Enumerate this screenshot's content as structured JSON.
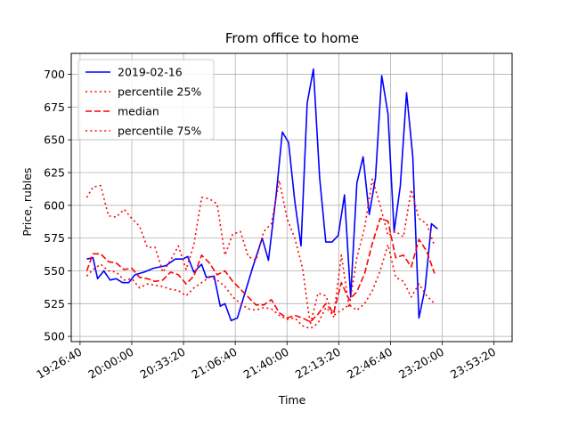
{
  "chart_data": {
    "type": "line",
    "title": "From office to home",
    "xlabel": "Time",
    "ylabel": "Price, rubles",
    "xlim": [
      "19:21:00",
      "24:05:00"
    ],
    "ylim": [
      496,
      716
    ],
    "grid": true,
    "legend_position": "top-left",
    "x_ticks": [
      "19:26:40",
      "20:00:00",
      "20:33:20",
      "21:06:40",
      "21:40:00",
      "22:13:20",
      "22:46:40",
      "23:20:00",
      "23:53:20"
    ],
    "y_ticks": [
      500,
      525,
      550,
      575,
      600,
      625,
      650,
      675,
      700
    ],
    "series": [
      {
        "name": "2019-02-16",
        "color": "#0000ff",
        "style": "solid",
        "points": [
          [
            "19:31:00",
            559
          ],
          [
            "19:35:00",
            560
          ],
          [
            "19:38:00",
            544
          ],
          [
            "19:42:00",
            550
          ],
          [
            "19:46:00",
            543
          ],
          [
            "19:50:00",
            544
          ],
          [
            "19:54:00",
            541
          ],
          [
            "19:58:00",
            541
          ],
          [
            "20:02:00",
            547
          ],
          [
            "20:08:00",
            549
          ],
          [
            "20:14:00",
            552
          ],
          [
            "20:22:00",
            554
          ],
          [
            "20:28:00",
            559
          ],
          [
            "20:33:00",
            559
          ],
          [
            "20:36:00",
            561
          ],
          [
            "20:40:00",
            549
          ],
          [
            "20:45:00",
            555
          ],
          [
            "20:48:00",
            545
          ],
          [
            "20:53:00",
            546
          ],
          [
            "20:57:00",
            523
          ],
          [
            "21:00:00",
            525
          ],
          [
            "21:04:00",
            512
          ],
          [
            "21:08:00",
            514
          ],
          [
            "21:18:00",
            553
          ],
          [
            "21:24:00",
            575
          ],
          [
            "21:28:00",
            558
          ],
          [
            "21:33:00",
            608
          ],
          [
            "21:37:00",
            656
          ],
          [
            "21:41:00",
            648
          ],
          [
            "21:45:00",
            603
          ],
          [
            "21:49:00",
            569
          ],
          [
            "21:53:00",
            678
          ],
          [
            "21:57:00",
            704
          ],
          [
            "22:01:00",
            621
          ],
          [
            "22:05:00",
            572
          ],
          [
            "22:09:00",
            572
          ],
          [
            "22:13:00",
            577
          ],
          [
            "22:17:00",
            608
          ],
          [
            "22:21:00",
            530
          ],
          [
            "22:25:00",
            617
          ],
          [
            "22:29:00",
            637
          ],
          [
            "22:33:00",
            593
          ],
          [
            "22:37:00",
            621
          ],
          [
            "22:41:00",
            699
          ],
          [
            "22:45:00",
            670
          ],
          [
            "22:49:00",
            580
          ],
          [
            "22:53:00",
            615
          ],
          [
            "22:57:00",
            686
          ],
          [
            "23:01:00",
            637
          ],
          [
            "23:05:00",
            514
          ],
          [
            "23:09:00",
            537
          ],
          [
            "23:13:00",
            586
          ],
          [
            "23:17:00",
            582
          ]
        ]
      },
      {
        "name": "percentile 25%",
        "color": "#ff0000",
        "style": "dotted",
        "points": [
          [
            "19:31:00",
            546
          ],
          [
            "19:35:00",
            551
          ],
          [
            "19:40:00",
            555
          ],
          [
            "19:45:00",
            550
          ],
          [
            "19:50:00",
            549
          ],
          [
            "19:55:00",
            543
          ],
          [
            "20:00:00",
            544
          ],
          [
            "20:05:00",
            537
          ],
          [
            "20:10:00",
            540
          ],
          [
            "20:15:00",
            539
          ],
          [
            "20:20:00",
            538
          ],
          [
            "20:25:00",
            536
          ],
          [
            "20:30:00",
            535
          ],
          [
            "20:35:00",
            531
          ],
          [
            "20:40:00",
            537
          ],
          [
            "20:45:00",
            541
          ],
          [
            "20:50:00",
            545
          ],
          [
            "20:55:00",
            543
          ],
          [
            "21:00:00",
            538
          ],
          [
            "21:05:00",
            530
          ],
          [
            "21:10:00",
            525
          ],
          [
            "21:15:00",
            521
          ],
          [
            "21:20:00",
            520
          ],
          [
            "21:25:00",
            522
          ],
          [
            "21:30:00",
            521
          ],
          [
            "21:35:00",
            516
          ],
          [
            "21:40:00",
            513
          ],
          [
            "21:45:00",
            514
          ],
          [
            "21:50:00",
            508
          ],
          [
            "21:55:00",
            506
          ],
          [
            "22:00:00",
            510
          ],
          [
            "22:05:00",
            522
          ],
          [
            "22:10:00",
            516
          ],
          [
            "22:15:00",
            520
          ],
          [
            "22:20:00",
            524
          ],
          [
            "22:25:00",
            520
          ],
          [
            "22:30:00",
            525
          ],
          [
            "22:35:00",
            535
          ],
          [
            "22:40:00",
            550
          ],
          [
            "22:45:00",
            570
          ],
          [
            "22:50:00",
            545
          ],
          [
            "22:55:00",
            542
          ],
          [
            "23:00:00",
            530
          ],
          [
            "23:05:00",
            540
          ],
          [
            "23:10:00",
            531
          ],
          [
            "23:15:00",
            525
          ]
        ]
      },
      {
        "name": "median",
        "color": "#ff0000",
        "style": "dashed",
        "points": [
          [
            "19:31:00",
            550
          ],
          [
            "19:35:00",
            563
          ],
          [
            "19:40:00",
            563
          ],
          [
            "19:45:00",
            557
          ],
          [
            "19:50:00",
            556
          ],
          [
            "19:55:00",
            551
          ],
          [
            "20:00:00",
            552
          ],
          [
            "20:05:00",
            545
          ],
          [
            "20:10:00",
            544
          ],
          [
            "20:15:00",
            542
          ],
          [
            "20:20:00",
            543
          ],
          [
            "20:25:00",
            549
          ],
          [
            "20:30:00",
            547
          ],
          [
            "20:35:00",
            540
          ],
          [
            "20:40:00",
            546
          ],
          [
            "20:45:00",
            562
          ],
          [
            "20:50:00",
            556
          ],
          [
            "20:55:00",
            547
          ],
          [
            "21:00:00",
            550
          ],
          [
            "21:05:00",
            542
          ],
          [
            "21:10:00",
            536
          ],
          [
            "21:15:00",
            530
          ],
          [
            "21:20:00",
            524
          ],
          [
            "21:25:00",
            524
          ],
          [
            "21:30:00",
            528
          ],
          [
            "21:35:00",
            518
          ],
          [
            "21:40:00",
            514
          ],
          [
            "21:45:00",
            516
          ],
          [
            "21:50:00",
            514
          ],
          [
            "21:55:00",
            511
          ],
          [
            "22:00:00",
            517
          ],
          [
            "22:05:00",
            525
          ],
          [
            "22:10:00",
            518
          ],
          [
            "22:15:00",
            541
          ],
          [
            "22:20:00",
            528
          ],
          [
            "22:25:00",
            534
          ],
          [
            "22:30:00",
            548
          ],
          [
            "22:35:00",
            571
          ],
          [
            "22:40:00",
            590
          ],
          [
            "22:45:00",
            588
          ],
          [
            "22:50:00",
            560
          ],
          [
            "22:55:00",
            562
          ],
          [
            "23:00:00",
            553
          ],
          [
            "23:05:00",
            574
          ],
          [
            "23:10:00",
            565
          ],
          [
            "23:15:00",
            548
          ]
        ]
      },
      {
        "name": "percentile 75%",
        "color": "#ff0000",
        "style": "dotted",
        "points": [
          [
            "19:31:00",
            606
          ],
          [
            "19:35:00",
            614
          ],
          [
            "19:40:00",
            615
          ],
          [
            "19:45:00",
            592
          ],
          [
            "19:50:00",
            591
          ],
          [
            "19:55:00",
            597
          ],
          [
            "20:00:00",
            590
          ],
          [
            "20:05:00",
            584
          ],
          [
            "20:10:00",
            568
          ],
          [
            "20:15:00",
            568
          ],
          [
            "20:20:00",
            549
          ],
          [
            "20:25:00",
            558
          ],
          [
            "20:30:00",
            569
          ],
          [
            "20:35:00",
            551
          ],
          [
            "20:40:00",
            570
          ],
          [
            "20:45:00",
            606
          ],
          [
            "20:50:00",
            605
          ],
          [
            "20:55:00",
            601
          ],
          [
            "21:00:00",
            562
          ],
          [
            "21:05:00",
            578
          ],
          [
            "21:10:00",
            580
          ],
          [
            "21:15:00",
            561
          ],
          [
            "21:20:00",
            558
          ],
          [
            "21:25:00",
            580
          ],
          [
            "21:30:00",
            586
          ],
          [
            "21:35:00",
            619
          ],
          [
            "21:40:00",
            590
          ],
          [
            "21:45:00",
            575
          ],
          [
            "21:50:00",
            552
          ],
          [
            "21:55:00",
            509
          ],
          [
            "22:00:00",
            533
          ],
          [
            "22:05:00",
            531
          ],
          [
            "22:10:00",
            515
          ],
          [
            "22:15:00",
            562
          ],
          [
            "22:20:00",
            522
          ],
          [
            "22:25:00",
            560
          ],
          [
            "22:30:00",
            583
          ],
          [
            "22:35:00",
            620
          ],
          [
            "22:40:00",
            600
          ],
          [
            "22:45:00",
            577
          ],
          [
            "22:50:00",
            580
          ],
          [
            "22:55:00",
            576
          ],
          [
            "23:00:00",
            612
          ],
          [
            "23:05:00",
            590
          ],
          [
            "23:10:00",
            586
          ],
          [
            "23:15:00",
            569
          ]
        ]
      }
    ]
  }
}
